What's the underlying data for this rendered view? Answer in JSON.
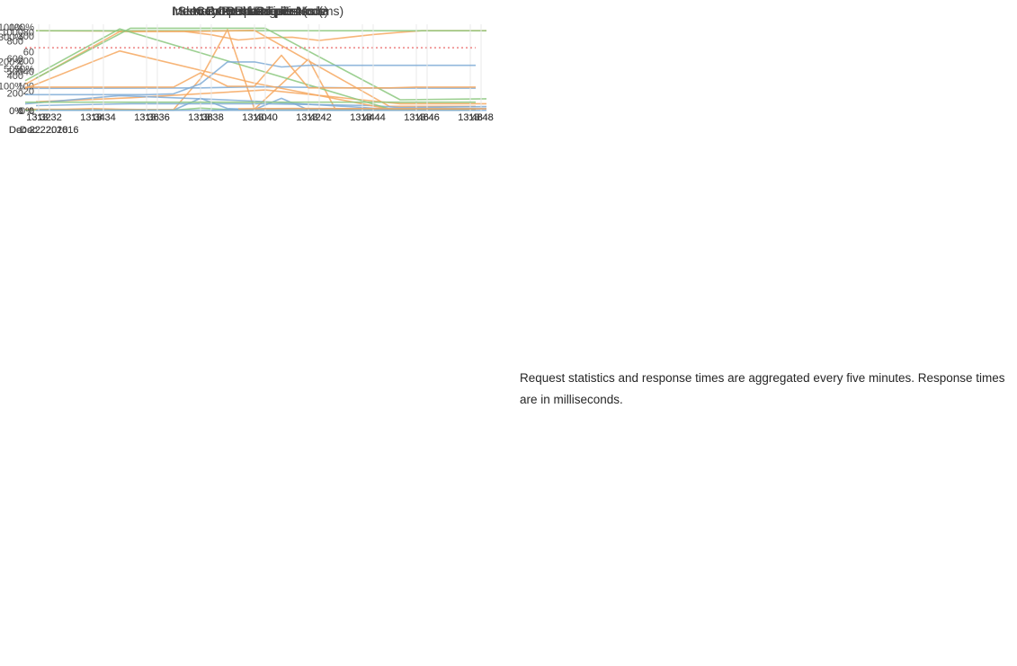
{
  "note": {
    "text": "Request statistics and response times are aggregated every five minutes. Response times are in milliseconds."
  },
  "date_label": "Dec 22. 2016",
  "colors": {
    "blue": "#7fabd6",
    "orange": "#f6a860",
    "green": "#8cc87f",
    "threshold_red": "#ee8c8c",
    "gridline": "#e8e8e8",
    "title_text": "#3d3d3d",
    "tick_text": "#444444",
    "background": "#ffffff"
  },
  "x_ticks": [
    "13:32",
    "13:34",
    "13:36",
    "13:38",
    "13:40",
    "13:42",
    "13:44",
    "13:46",
    "13:48"
  ],
  "chart_data": [
    {
      "type": "line",
      "title": "CPU Usage",
      "xlabel": "",
      "ylabel": "",
      "x_ticks": [
        "13:32",
        "13:34",
        "13:36",
        "13:38",
        "13:40",
        "13:42",
        "13:44",
        "13:46",
        "13:48"
      ],
      "date": "Dec 22. 2016",
      "grid": "vertical",
      "legend": "none",
      "y_ticks": [
        {
          "value": 0,
          "label": "0%"
        },
        {
          "value": 100,
          "label": "100%"
        },
        {
          "value": 200,
          "label": "200%"
        },
        {
          "value": 300,
          "label": "300%"
        }
      ],
      "ylim": [
        0,
        352
      ],
      "x_unit": "minutes after 13:00 on Dec 22. 2016",
      "series": [
        {
          "name": "blue",
          "color": "#7fabd6",
          "x": [
            31.5,
            33,
            34,
            35,
            36,
            37,
            38,
            39,
            40,
            41,
            42,
            43,
            48.2
          ],
          "y": [
            3,
            3,
            4,
            3,
            3,
            2,
            50,
            8,
            4,
            50,
            3,
            2,
            2
          ]
        },
        {
          "name": "orange",
          "color": "#f6a860",
          "x": [
            31.5,
            33,
            34,
            35,
            36,
            37,
            38,
            39,
            40,
            42,
            43,
            44,
            45,
            48.2
          ],
          "y": [
            5,
            5,
            8,
            5,
            4,
            4,
            130,
            330,
            6,
            210,
            5,
            8,
            6,
            6
          ]
        },
        {
          "name": "green",
          "color": "#8cc87f",
          "x": [
            31.5,
            37,
            38,
            39,
            40,
            48.2
          ],
          "y": [
            2,
            2,
            10,
            4,
            2,
            2
          ]
        }
      ]
    },
    {
      "type": "line",
      "title": "CPU Credits",
      "xlabel": "",
      "ylabel": "",
      "x_ticks": [
        "13:32",
        "13:34",
        "13:36",
        "13:38",
        "13:40",
        "13:42",
        "13:44",
        "13:46",
        "13:48"
      ],
      "date": "Dec 22. 2016",
      "grid": "vertical",
      "legend": "none",
      "y_ticks": [
        {
          "value": 0,
          "label": "0"
        },
        {
          "value": 100,
          "label": "100"
        },
        {
          "value": 200,
          "label": "200"
        },
        {
          "value": 300,
          "label": "300"
        }
      ],
      "ylim": [
        0,
        346
      ],
      "x_unit": "minutes after 13:00 on Dec 22. 2016",
      "series": [
        {
          "name": "blue",
          "color": "#7fabd6",
          "x": [
            31.5,
            48.2
          ],
          "y": [
            1,
            1
          ]
        },
        {
          "name": "orange",
          "color": "#f6a860",
          "x": [
            31.5,
            37,
            38,
            39,
            40,
            41,
            42,
            43,
            44,
            45,
            45.8,
            48.2
          ],
          "y": [
            320,
            317,
            304,
            283,
            292,
            294,
            281,
            293,
            305,
            314,
            320,
            320
          ]
        },
        {
          "name": "green",
          "color": "#8cc87f",
          "x": [
            31.5,
            48.2
          ],
          "y": [
            320,
            320
          ]
        }
      ]
    },
    {
      "type": "line",
      "title": "Number of Requests",
      "xlabel": "",
      "ylabel": "",
      "x_ticks": [
        "13:32",
        "13:34",
        "13:36",
        "13:38",
        "13:40",
        "13:42",
        "13:44",
        "13:46",
        "13:48"
      ],
      "date": "Dec 22. 2016",
      "grid": "vertical",
      "legend": "none",
      "y_ticks": [
        {
          "value": 0,
          "label": "0"
        },
        {
          "value": 200,
          "label": "200"
        },
        {
          "value": 400,
          "label": "400"
        },
        {
          "value": 600,
          "label": "600"
        },
        {
          "value": 800,
          "label": "800"
        }
      ],
      "ylim": [
        0,
        990
      ],
      "x_unit": "minutes after 13:00 on Dec 22. 2016",
      "series": [
        {
          "name": "blue",
          "color": "#7fabd6",
          "x": [
            31.5,
            38,
            40,
            42,
            44,
            48.2
          ],
          "y": [
            255,
            260,
            272,
            266,
            258,
            257
          ]
        },
        {
          "name": "orange",
          "color": "#f6a860",
          "x": [
            31.5,
            35,
            38,
            40,
            45,
            48.2
          ],
          "y": [
            300,
            905,
            910,
            920,
            48,
            48
          ]
        }
      ]
    },
    {
      "type": "line",
      "title": "Search Response Times (ms)",
      "xlabel": "",
      "ylabel": "",
      "x_ticks": [
        "13:32",
        "13:34",
        "13:36",
        "13:38",
        "13:40",
        "13:42",
        "13:44",
        "13:46",
        "13:48"
      ],
      "date": "Dec 22. 2016",
      "grid": "vertical",
      "legend": "none",
      "y_ticks": [
        {
          "value": 0,
          "label": "0"
        },
        {
          "value": 20,
          "label": "20"
        },
        {
          "value": 40,
          "label": "40"
        },
        {
          "value": 60,
          "label": "60"
        },
        {
          "value": 80,
          "label": "80"
        }
      ],
      "ylim": [
        0,
        88
      ],
      "x_unit": "minutes after 13:00 on Dec 22. 2016",
      "series": [
        {
          "name": "blue",
          "color": "#7fabd6",
          "x": [
            31.5,
            35,
            40,
            44,
            45,
            48.2
          ],
          "y": [
            5,
            7,
            7,
            5,
            3,
            4
          ]
        },
        {
          "name": "orange",
          "color": "#f6a860",
          "x": [
            31.5,
            35,
            40,
            45,
            48.2
          ],
          "y": [
            9,
            13,
            21,
            7,
            7
          ]
        },
        {
          "name": "green",
          "color": "#8cc87f",
          "x": [
            31.5,
            35,
            40,
            45,
            48.2
          ],
          "y": [
            33,
            84,
            84,
            11,
            12
          ]
        }
      ]
    },
    {
      "type": "line",
      "title": "Index Response Times (ms)",
      "xlabel": "",
      "ylabel": "",
      "x_ticks": [
        "13:32",
        "13:34",
        "13:36",
        "13:38",
        "13:40",
        "13:42",
        "13:44",
        "13:46",
        "13:48"
      ],
      "date": "Dec 22. 2016",
      "grid": "vertical",
      "legend": "none",
      "y_ticks": [
        {
          "value": 0,
          "label": "0"
        },
        {
          "value": 500,
          "label": "500"
        },
        {
          "value": 1000,
          "label": "1000"
        }
      ],
      "ylim": [
        0,
        1100
      ],
      "x_unit": "minutes after 13:00 on Dec 22. 2016",
      "series": [
        {
          "name": "blue",
          "color": "#7fabd6",
          "x": [
            31.5,
            35,
            38,
            40,
            44,
            45,
            48.2
          ],
          "y": [
            85,
            190,
            150,
            120,
            40,
            15,
            15
          ]
        },
        {
          "name": "orange",
          "color": "#f6a860",
          "x": [
            31.5,
            35,
            40,
            45,
            48.2
          ],
          "y": [
            280,
            760,
            350,
            20,
            20
          ]
        },
        {
          "name": "green",
          "color": "#8cc87f",
          "x": [
            31.5,
            35,
            45,
            48.2
          ],
          "y": [
            380,
            1040,
            22,
            22
          ]
        }
      ]
    },
    {
      "type": "line",
      "title": "Memory Pressure per Node",
      "xlabel": "",
      "ylabel": "",
      "x_ticks": [
        "13:32",
        "13:34",
        "13:36",
        "13:38",
        "13:40",
        "13:42",
        "13:44",
        "13:46",
        "13:48"
      ],
      "date": "Dec 22. 2016",
      "grid": "vertical",
      "legend": "none",
      "y_ticks": [
        {
          "value": 0,
          "label": "0%"
        },
        {
          "value": 50,
          "label": "50%"
        },
        {
          "value": 100,
          "label": "100%"
        }
      ],
      "ylim": [
        0,
        103
      ],
      "x_unit": "minutes after 13:00 on Dec 22. 2016",
      "series": [
        {
          "name": "blue",
          "color": "#7fabd6",
          "x": [
            31.5,
            36,
            37,
            38,
            39,
            40,
            41,
            42,
            48.2
          ],
          "y": [
            19,
            19,
            20,
            32,
            58,
            58,
            52,
            54,
            54
          ]
        },
        {
          "name": "orange",
          "color": "#f6a860",
          "x": [
            31.5,
            37,
            38,
            39,
            40,
            41,
            42,
            45,
            46,
            48.2
          ],
          "y": [
            28,
            28,
            45,
            29,
            29,
            66,
            27,
            27,
            28,
            28
          ]
        },
        {
          "name": "green",
          "color": "#8cc87f",
          "x": [
            31.5,
            48.2
          ],
          "y": [
            10,
            10
          ]
        },
        {
          "name": "threshold",
          "color": "#ee8c8c",
          "dash": true,
          "x": [
            31.5,
            48.2
          ],
          "y": [
            75,
            75
          ]
        }
      ]
    },
    {
      "type": "line",
      "title": "GC overhead per Node",
      "xlabel": "",
      "ylabel": "",
      "x_ticks": [
        "13:32",
        "13:34",
        "13:36",
        "13:38",
        "13:40",
        "13:42",
        "13:44",
        "13:46",
        "13:48"
      ],
      "date": "Dec 22. 2016",
      "grid": "vertical",
      "legend": "none",
      "y_ticks": [
        {
          "value": 0,
          "label": "0%"
        },
        {
          "value": 50,
          "label": "50%"
        },
        {
          "value": 100,
          "label": "100%"
        }
      ],
      "ylim": [
        0,
        103
      ],
      "x_unit": "minutes after 13:00 on Dec 22. 2016",
      "series": [
        {
          "name": "blue",
          "color": "#7fabd6",
          "x": [
            38,
            39,
            40,
            48.2
          ],
          "y": [
            0,
            1.5,
            2,
            2.5
          ]
        },
        {
          "name": "orange",
          "color": "#f6a860",
          "x": [
            39,
            41,
            48.2
          ],
          "y": [
            2,
            2.5,
            2
          ]
        }
      ]
    }
  ]
}
